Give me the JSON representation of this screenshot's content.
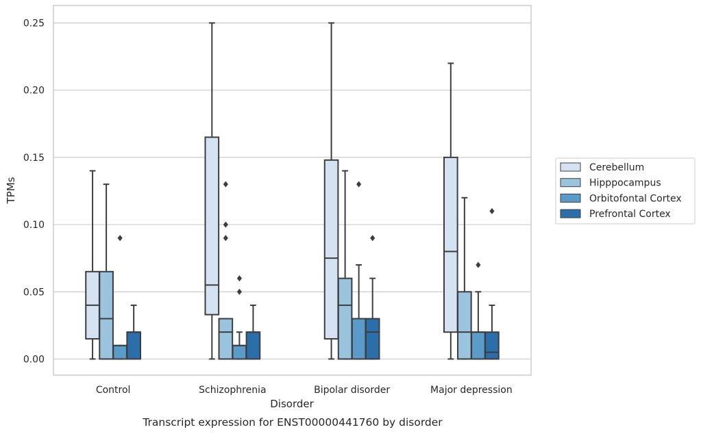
{
  "chart_data": {
    "type": "box",
    "title": "",
    "caption": "Transcript expression for ENST00000441760 by disorder",
    "xlabel": "Disorder",
    "ylabel": "TPMs",
    "ylim": [
      -0.012,
      0.263
    ],
    "yticks": [
      "0.00",
      "0.05",
      "0.10",
      "0.15",
      "0.20",
      "0.25"
    ],
    "ytick_values": [
      0,
      0.05,
      0.1,
      0.15,
      0.2,
      0.25
    ],
    "grid": "horizontal",
    "legend_position": "right",
    "categories": [
      "Control",
      "Schizophrenia",
      "Bipolar disorder",
      "Major depression"
    ],
    "series": [
      {
        "name": "Cerebellum",
        "color": "#d4e2f2",
        "boxes": [
          {
            "whislo": 0.0,
            "q1": 0.015,
            "med": 0.04,
            "q3": 0.065,
            "whishi": 0.14,
            "fliers": []
          },
          {
            "whislo": 0.0,
            "q1": 0.033,
            "med": 0.055,
            "q3": 0.165,
            "whishi": 0.25,
            "fliers": []
          },
          {
            "whislo": 0.0,
            "q1": 0.015,
            "med": 0.075,
            "q3": 0.148,
            "whishi": 0.25,
            "fliers": []
          },
          {
            "whislo": 0.0,
            "q1": 0.02,
            "med": 0.08,
            "q3": 0.15,
            "whishi": 0.22,
            "fliers": []
          }
        ]
      },
      {
        "name": "Hipppocampus",
        "color": "#9ac3de",
        "boxes": [
          {
            "whislo": 0.0,
            "q1": 0.0,
            "med": 0.03,
            "q3": 0.065,
            "whishi": 0.13,
            "fliers": []
          },
          {
            "whislo": 0.0,
            "q1": 0.0,
            "med": 0.02,
            "q3": 0.03,
            "whishi": 0.03,
            "fliers": [
              0.13,
              0.1,
              0.09
            ]
          },
          {
            "whislo": 0.0,
            "q1": 0.0,
            "med": 0.04,
            "q3": 0.06,
            "whishi": 0.14,
            "fliers": []
          },
          {
            "whislo": 0.0,
            "q1": 0.0,
            "med": 0.02,
            "q3": 0.05,
            "whishi": 0.12,
            "fliers": []
          }
        ]
      },
      {
        "name": "Orbitofontal Cortex",
        "color": "#5b9bc9",
        "boxes": [
          {
            "whislo": 0.0,
            "q1": 0.0,
            "med": 0.01,
            "q3": 0.01,
            "whishi": 0.01,
            "fliers": [
              0.09
            ]
          },
          {
            "whislo": 0.0,
            "q1": 0.0,
            "med": 0.01,
            "q3": 0.01,
            "whishi": 0.02,
            "fliers": [
              0.06,
              0.05
            ]
          },
          {
            "whislo": 0.0,
            "q1": 0.0,
            "med": 0.03,
            "q3": 0.03,
            "whishi": 0.07,
            "fliers": [
              0.13
            ]
          },
          {
            "whislo": 0.0,
            "q1": 0.0,
            "med": 0.02,
            "q3": 0.02,
            "whishi": 0.05,
            "fliers": [
              0.07
            ]
          }
        ]
      },
      {
        "name": "Prefrontal Cortex",
        "color": "#2c6ea9",
        "boxes": [
          {
            "whislo": 0.0,
            "q1": 0.0,
            "med": 0.02,
            "q3": 0.02,
            "whishi": 0.04,
            "fliers": []
          },
          {
            "whislo": 0.0,
            "q1": 0.0,
            "med": 0.02,
            "q3": 0.02,
            "whishi": 0.04,
            "fliers": []
          },
          {
            "whislo": 0.0,
            "q1": 0.0,
            "med": 0.02,
            "q3": 0.03,
            "whishi": 0.06,
            "fliers": [
              0.09
            ]
          },
          {
            "whislo": 0.0,
            "q1": 0.0,
            "med": 0.005,
            "q3": 0.02,
            "whishi": 0.04,
            "fliers": [
              0.11
            ]
          }
        ]
      }
    ]
  },
  "colors": {
    "grid": "#cccccc",
    "frame": "#cccccc",
    "box_edge": "#3d3d3d",
    "background": "#ffffff"
  }
}
